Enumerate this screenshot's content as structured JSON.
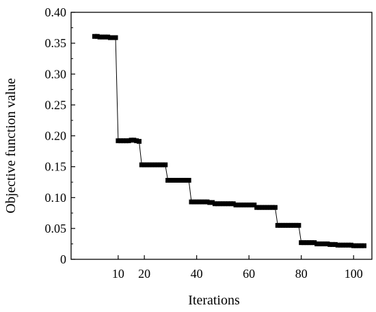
{
  "chart_data": {
    "type": "line",
    "title": "",
    "xlabel": "Iterations",
    "ylabel": "Objective function value",
    "x_tick_labels": [
      "10",
      "20",
      "40",
      "60",
      "80",
      "100"
    ],
    "y_tick_labels": [
      "0",
      "0.05",
      "0.10",
      "0.15",
      "0.20",
      "0.25",
      "0.30",
      "0.35",
      "0.40"
    ],
    "x_ticks": [
      10,
      20,
      40,
      60,
      80,
      100
    ],
    "y_ticks": [
      0,
      0.05,
      0.1,
      0.15,
      0.2,
      0.25,
      0.3,
      0.35,
      0.4
    ],
    "xlim": [
      -8,
      107
    ],
    "ylim": [
      0,
      0.4
    ],
    "grid": false,
    "marker": "square",
    "series": [
      {
        "x": [
          1,
          2,
          3,
          4,
          5,
          6,
          7,
          8,
          9,
          10,
          11,
          12,
          13,
          14,
          15,
          16,
          17,
          18,
          19,
          20,
          21,
          22,
          23,
          24,
          25,
          26,
          27,
          28,
          29,
          30,
          31,
          32,
          33,
          34,
          35,
          36,
          37,
          38,
          39,
          40,
          41,
          42,
          43,
          44,
          45,
          46,
          47,
          48,
          49,
          50,
          51,
          52,
          53,
          54,
          55,
          56,
          57,
          58,
          59,
          60,
          61,
          62,
          63,
          64,
          65,
          66,
          67,
          68,
          69,
          70,
          71,
          72,
          73,
          74,
          75,
          76,
          77,
          78,
          79,
          80,
          81,
          82,
          83,
          84,
          85,
          86,
          87,
          88,
          89,
          90,
          91,
          92,
          93,
          94,
          95,
          96,
          97,
          98,
          99,
          100,
          101,
          102,
          103,
          104
        ],
        "values": [
          0.361,
          0.361,
          0.36,
          0.36,
          0.36,
          0.36,
          0.359,
          0.359,
          0.359,
          0.192,
          0.192,
          0.192,
          0.192,
          0.192,
          0.193,
          0.193,
          0.192,
          0.191,
          0.153,
          0.153,
          0.153,
          0.153,
          0.153,
          0.153,
          0.153,
          0.153,
          0.153,
          0.153,
          0.128,
          0.128,
          0.128,
          0.128,
          0.128,
          0.128,
          0.128,
          0.128,
          0.128,
          0.093,
          0.093,
          0.093,
          0.093,
          0.093,
          0.093,
          0.093,
          0.092,
          0.092,
          0.09,
          0.09,
          0.09,
          0.09,
          0.09,
          0.09,
          0.09,
          0.09,
          0.088,
          0.088,
          0.088,
          0.088,
          0.088,
          0.088,
          0.088,
          0.088,
          0.084,
          0.084,
          0.084,
          0.084,
          0.084,
          0.084,
          0.084,
          0.084,
          0.055,
          0.055,
          0.055,
          0.055,
          0.055,
          0.055,
          0.055,
          0.055,
          0.055,
          0.027,
          0.027,
          0.027,
          0.027,
          0.027,
          0.027,
          0.025,
          0.025,
          0.025,
          0.025,
          0.025,
          0.024,
          0.024,
          0.024,
          0.023,
          0.023,
          0.023,
          0.023,
          0.023,
          0.023,
          0.022,
          0.022,
          0.022,
          0.022,
          0.022
        ]
      }
    ]
  }
}
